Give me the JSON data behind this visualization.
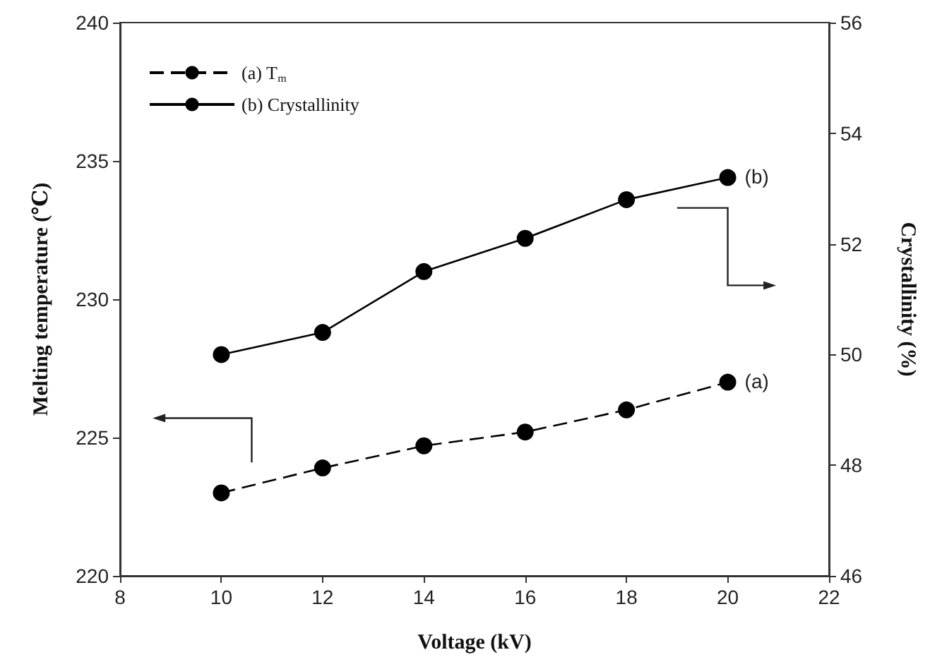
{
  "chart_data": {
    "type": "line",
    "xlabel": "Voltage (kV)",
    "ylabel": "Melting temperature (℃)",
    "y2label": "Crystallinity (%)",
    "x": [
      10,
      12,
      14,
      16,
      18,
      20
    ],
    "series": [
      {
        "name": "(a) T$_{m}$",
        "color": "#000000",
        "line_style": "dashed",
        "values": [
          223.0,
          223.9,
          224.7,
          225.2,
          226.0,
          227.0
        ]
      },
      {
        "name": "(b) Crystallinity",
        "color": "#000000",
        "line_style": "solid",
        "axis": "y2",
        "values": [
          50.0,
          50.4,
          51.5,
          52.1,
          52.8,
          53.2
        ]
      }
    ],
    "xlim": [
      8,
      22
    ],
    "xticks": [
      8,
      10,
      12,
      14,
      16,
      18,
      20,
      22
    ],
    "ylim": [
      220,
      240
    ],
    "yticks": [
      220,
      225,
      230,
      235,
      240
    ],
    "y2lim": [
      46,
      56
    ],
    "y2ticks": [
      46,
      48,
      50,
      52,
      54,
      56
    ],
    "marker": "circle",
    "legend": "top left",
    "annotations": [
      {
        "text": "(a)",
        "x": 20,
        "y": 227.0
      },
      {
        "text": "(b)",
        "x": 20,
        "y": 234.4
      }
    ]
  }
}
